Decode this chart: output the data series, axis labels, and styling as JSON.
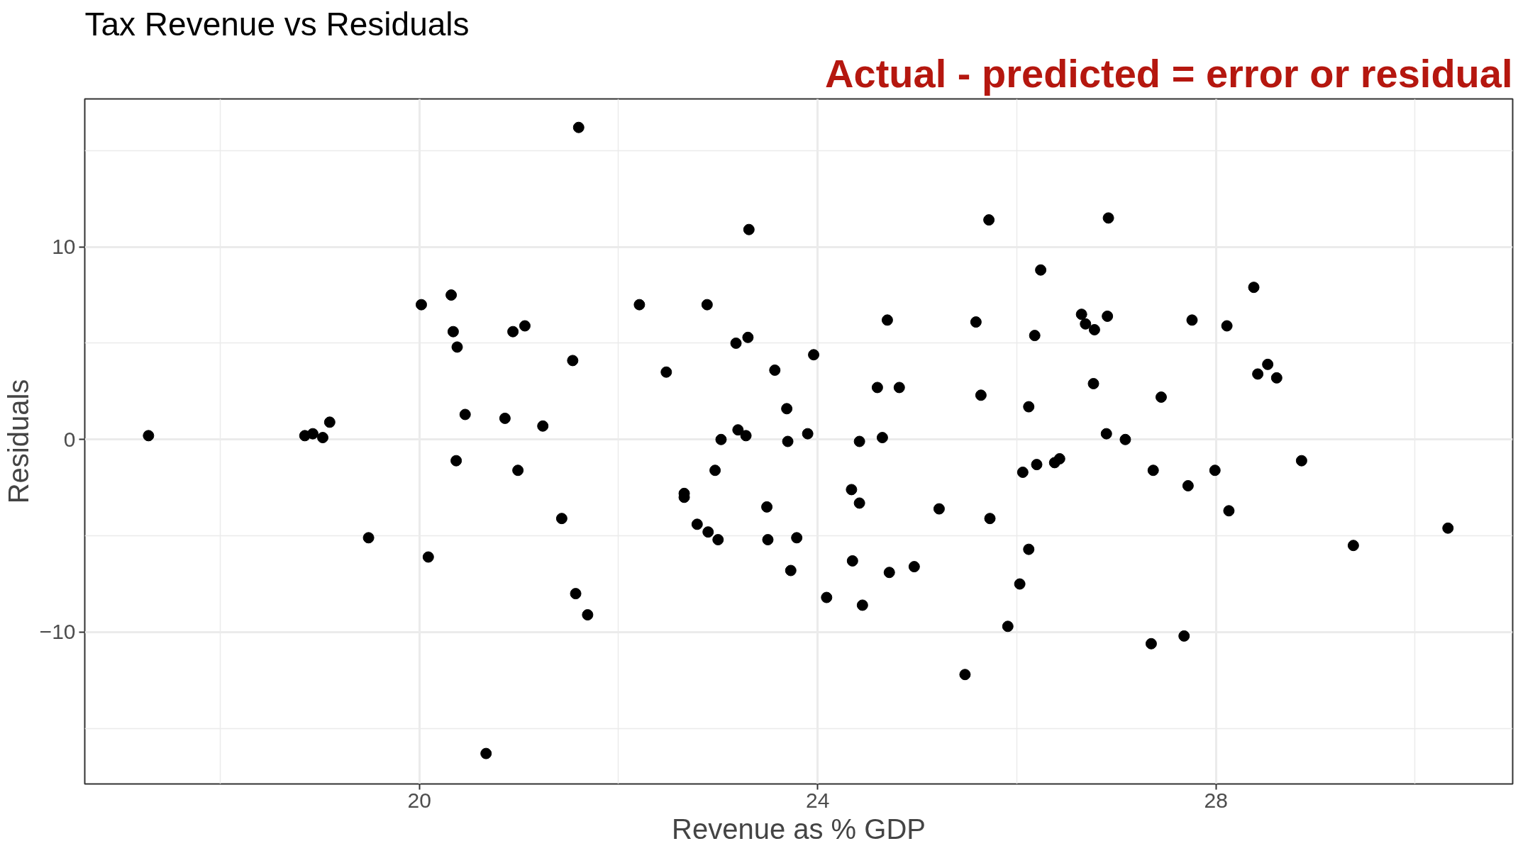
{
  "chart_data": {
    "type": "scatter",
    "title": "Tax Revenue vs Residuals",
    "xlabel": "Revenue as % GDP",
    "ylabel": "Residuals",
    "annotations": [
      "Actual - predicted = error or residual"
    ],
    "xlim": [
      16.64,
      30.98
    ],
    "ylim": [
      -17.88,
      17.68
    ],
    "xticks": [
      20,
      24,
      28
    ],
    "yticks": [
      {
        "value": -10,
        "label": "−10"
      },
      0,
      10
    ],
    "grid": true,
    "marker": "circle",
    "series": [
      {
        "color": "#000000",
        "x": [
          17.28,
          18.85,
          18.93,
          19.03,
          19.1,
          19.49,
          20.02,
          20.09,
          20.32,
          20.34,
          20.38,
          20.37,
          20.46,
          20.67,
          20.86,
          20.94,
          21.06,
          20.99,
          21.24,
          21.43,
          21.54,
          21.57,
          21.6,
          21.69,
          22.21,
          22.48,
          22.66,
          22.66,
          22.79,
          22.89,
          22.9,
          22.97,
          23.0,
          23.03,
          23.18,
          23.2,
          23.28,
          23.3,
          23.31,
          23.49,
          23.5,
          23.57,
          23.69,
          23.7,
          23.73,
          23.79,
          23.9,
          23.96,
          24.09,
          24.34,
          24.35,
          24.42,
          24.42,
          24.45,
          24.6,
          24.65,
          24.7,
          24.72,
          24.82,
          24.97,
          25.22,
          25.48,
          25.59,
          25.64,
          25.72,
          25.73,
          25.91,
          26.03,
          26.06,
          26.12,
          26.12,
          26.18,
          26.2,
          26.24,
          26.38,
          26.43,
          26.65,
          26.69,
          26.78,
          26.77,
          26.9,
          26.91,
          26.92,
          27.09,
          27.35,
          27.37,
          27.45,
          27.68,
          27.72,
          27.76,
          27.99,
          28.11,
          28.13,
          28.38,
          28.42,
          28.52,
          28.61,
          28.86,
          29.38,
          30.33
        ],
        "values": [
          0.2,
          0.2,
          0.3,
          0.1,
          0.9,
          -5.1,
          7.0,
          -6.1,
          7.5,
          5.6,
          4.8,
          -1.1,
          1.3,
          -16.3,
          1.1,
          5.6,
          5.9,
          -1.6,
          0.7,
          -4.1,
          4.1,
          -8.0,
          16.2,
          -9.1,
          7.0,
          3.5,
          -2.8,
          -3.0,
          -4.4,
          7.0,
          -4.8,
          -1.6,
          -5.2,
          0.0,
          5.0,
          0.5,
          0.2,
          5.3,
          10.9,
          -3.5,
          -5.2,
          3.6,
          1.6,
          -0.1,
          -6.8,
          -5.1,
          0.3,
          4.4,
          -8.2,
          -2.6,
          -6.3,
          -3.3,
          -0.1,
          -8.6,
          2.7,
          0.1,
          6.2,
          -6.9,
          2.7,
          -6.6,
          -3.6,
          -12.2,
          6.1,
          2.3,
          11.4,
          -4.1,
          -9.7,
          -7.5,
          -1.7,
          -5.7,
          1.7,
          5.4,
          -1.3,
          8.8,
          -1.2,
          -1.0,
          6.5,
          6.0,
          5.7,
          2.9,
          0.3,
          6.4,
          11.5,
          0.0,
          -10.6,
          -1.6,
          2.2,
          -10.2,
          -2.4,
          6.2,
          -1.6,
          5.9,
          -3.7,
          7.9,
          3.4,
          3.9,
          3.2,
          -1.1,
          -5.5,
          -4.6
        ]
      }
    ]
  }
}
